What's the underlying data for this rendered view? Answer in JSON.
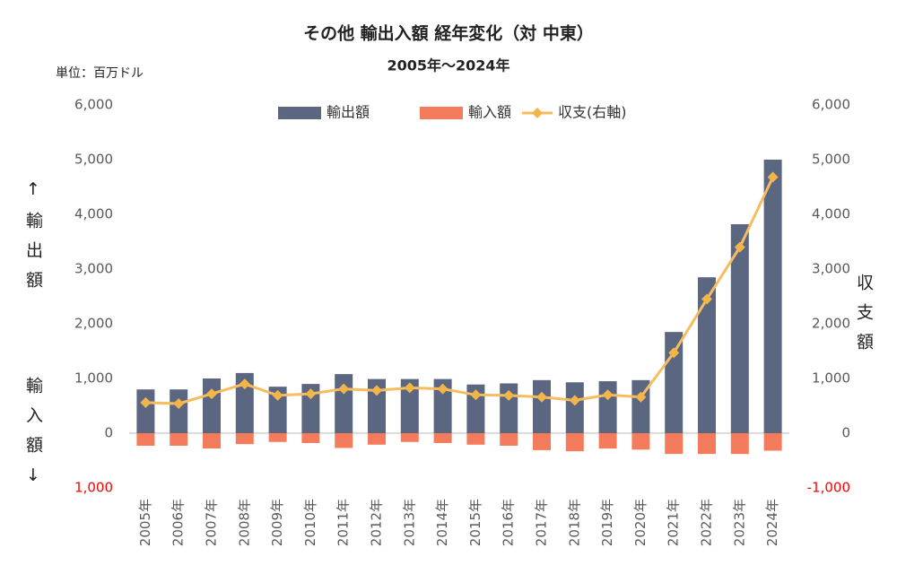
{
  "chart_data": {
    "type": "bar-line",
    "title": "その他 輸出入額 経年変化（対 中東）",
    "subtitle": "2005年～2024年",
    "unit_label": "単位：百万ドル",
    "y_label_top": "↑輸出額",
    "y_label_bottom": "輸入額↓",
    "y2_label": "収支額",
    "categories": [
      "2005年",
      "2006年",
      "2007年",
      "2008年",
      "2009年",
      "2010年",
      "2011年",
      "2012年",
      "2013年",
      "2014年",
      "2015年",
      "2016年",
      "2017年",
      "2018年",
      "2019年",
      "2020年",
      "2021年",
      "2022年",
      "2023年",
      "2024年"
    ],
    "series": [
      {
        "name": "輸出額",
        "type": "bar",
        "color": "#5b6681",
        "values": [
          800,
          800,
          1000,
          1100,
          850,
          900,
          1080,
          990,
          990,
          990,
          890,
          910,
          970,
          930,
          950,
          970,
          1850,
          2850,
          3820,
          5000
        ]
      },
      {
        "name": "輸入額",
        "type": "bar",
        "color": "#f47c5c",
        "values": [
          -230,
          -230,
          -280,
          -200,
          -160,
          -180,
          -270,
          -210,
          -160,
          -180,
          -210,
          -230,
          -310,
          -330,
          -280,
          -300,
          -380,
          -380,
          -380,
          -320
        ]
      },
      {
        "name": "収支(右軸)",
        "type": "line",
        "axis": "y2",
        "color": "#f5bd5f",
        "values": [
          560,
          540,
          720,
          900,
          690,
          720,
          810,
          780,
          830,
          810,
          700,
          690,
          660,
          600,
          700,
          660,
          1470,
          2450,
          3400,
          4680
        ]
      }
    ],
    "ylim": [
      -1000,
      6000
    ],
    "yticks": [
      {
        "value": 6000,
        "label": "6,000"
      },
      {
        "value": 5000,
        "label": "5,000"
      },
      {
        "value": 4000,
        "label": "4,000"
      },
      {
        "value": 3000,
        "label": "3,000"
      },
      {
        "value": 2000,
        "label": "2,000"
      },
      {
        "value": 1000,
        "label": "1,000"
      },
      0,
      {
        "value": -1000,
        "label": "1,000"
      }
    ],
    "y2lim": [
      -1000,
      6000
    ],
    "y2ticks": [
      {
        "value": 6000,
        "label": "6,000"
      },
      {
        "value": 5000,
        "label": "5,000"
      },
      {
        "value": 4000,
        "label": "4,000"
      },
      {
        "value": 3000,
        "label": "3,000"
      },
      {
        "value": 2000,
        "label": "2,000"
      },
      {
        "value": 1000,
        "label": "1,000"
      },
      0,
      {
        "value": -1000,
        "label": "-1,000"
      }
    ],
    "negative_tick_color": "#ff0000",
    "legend": "top"
  }
}
